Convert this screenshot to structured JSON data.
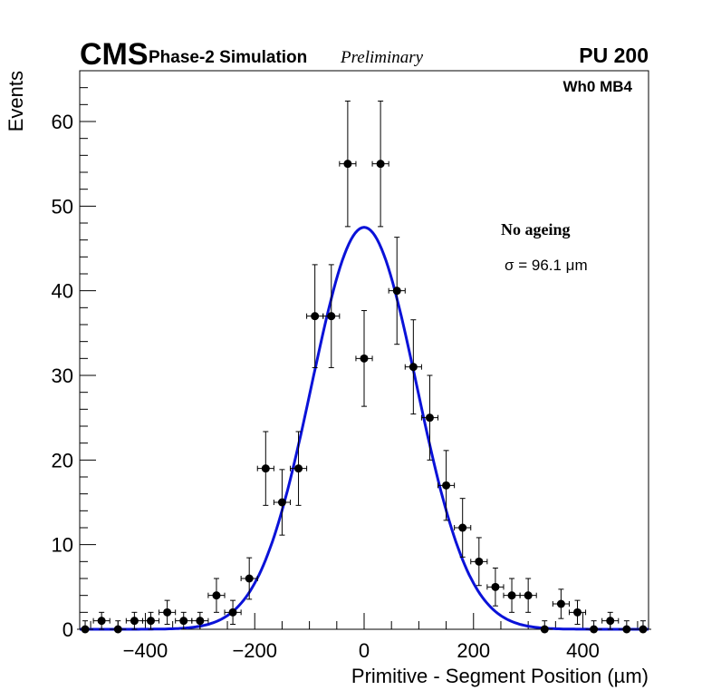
{
  "header": {
    "cms": "CMS",
    "phase": "Phase-2 Simulation",
    "preliminary": "Preliminary",
    "pileup": "PU 200"
  },
  "colors": {
    "fit": "#0a12d8",
    "points": "#000000",
    "frame": "#000000"
  },
  "chart_data": {
    "type": "scatter",
    "title": "",
    "xlabel": "Primitive - Segment Position (µm)",
    "ylabel": "Events",
    "xlim": [
      -520,
      520
    ],
    "ylim": [
      0,
      66
    ],
    "xticks": [
      -400,
      -200,
      0,
      200,
      400
    ],
    "xtick_labels": [
      "−400",
      "−200",
      "0",
      "200",
      "400"
    ],
    "yticks": [
      0,
      10,
      20,
      30,
      40,
      50,
      60
    ],
    "ytick_labels": [
      "0",
      "10",
      "20",
      "30",
      "40",
      "50",
      "60"
    ],
    "chamber_label": "Wh0 MB4",
    "ageing_label": "No ageing",
    "fit_label": "σ = 96.1 μm",
    "bin_width": 30,
    "series": [
      {
        "name": "data",
        "x": [
          -510,
          -480,
          -450,
          -420,
          -390,
          -360,
          -330,
          -300,
          -270,
          -240,
          -210,
          -180,
          -150,
          -120,
          -90,
          -60,
          -30,
          0,
          30,
          60,
          90,
          120,
          150,
          180,
          210,
          240,
          270,
          300,
          330,
          360,
          390,
          420,
          450,
          480,
          510
        ],
        "y": [
          0,
          1,
          0,
          1,
          1,
          2,
          1,
          1,
          4,
          2,
          6,
          19,
          15,
          19,
          37,
          37,
          55,
          32,
          55,
          40,
          31,
          25,
          17,
          12,
          8,
          5,
          4,
          4,
          0,
          3,
          2,
          0,
          1,
          0,
          0
        ]
      },
      {
        "name": "gaussian fit",
        "type": "line",
        "amplitude": 47.5,
        "mean": 0,
        "sigma": 96.1
      }
    ]
  }
}
